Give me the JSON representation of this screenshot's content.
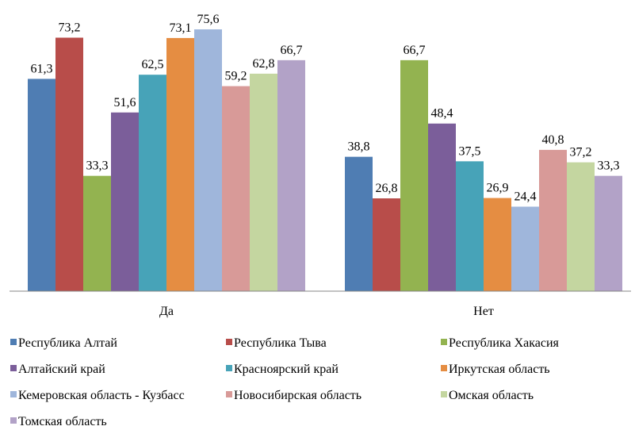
{
  "chart_data": {
    "type": "bar",
    "categories": [
      "Да",
      "Нет"
    ],
    "ylim": [
      0,
      80
    ],
    "grid": false,
    "legend_position": "bottom",
    "data_labels": true,
    "series": [
      {
        "name": "Республика Алтай",
        "color": "#4f7db3",
        "values": [
          61.3,
          38.8
        ],
        "labels": [
          "61,3",
          "38,8"
        ]
      },
      {
        "name": "Республика Тыва",
        "color": "#b84d4a",
        "values": [
          73.2,
          26.8
        ],
        "labels": [
          "73,2",
          "26,8"
        ]
      },
      {
        "name": "Республика Хакасия",
        "color": "#93b350",
        "values": [
          33.3,
          66.7
        ],
        "labels": [
          "33,3",
          "66,7"
        ]
      },
      {
        "name": "Алтайский край",
        "color": "#7b5e9a",
        "values": [
          51.6,
          48.4
        ],
        "labels": [
          "51,6",
          "48,4"
        ]
      },
      {
        "name": "Красноярский край",
        "color": "#47a3b8",
        "values": [
          62.5,
          37.5
        ],
        "labels": [
          "62,5",
          "37,5"
        ]
      },
      {
        "name": "Иркутская область",
        "color": "#e58d42",
        "values": [
          73.1,
          26.9
        ],
        "labels": [
          "73,1",
          "26,9"
        ]
      },
      {
        "name": "Кемеровская область - Кузбасс",
        "color": "#9fb6db",
        "values": [
          75.6,
          24.4
        ],
        "labels": [
          "75,6",
          "24,4"
        ]
      },
      {
        "name": "Новосибирская область",
        "color": "#d89a98",
        "values": [
          59.2,
          40.8
        ],
        "labels": [
          "59,2",
          "40,8"
        ]
      },
      {
        "name": "Омская область",
        "color": "#c4d6a0",
        "values": [
          62.8,
          37.2
        ],
        "labels": [
          "62,8",
          "37,2"
        ]
      },
      {
        "name": "Томская область",
        "color": "#b2a2c7",
        "values": [
          66.7,
          33.3
        ],
        "labels": [
          "66,7",
          "33,3"
        ]
      }
    ]
  }
}
